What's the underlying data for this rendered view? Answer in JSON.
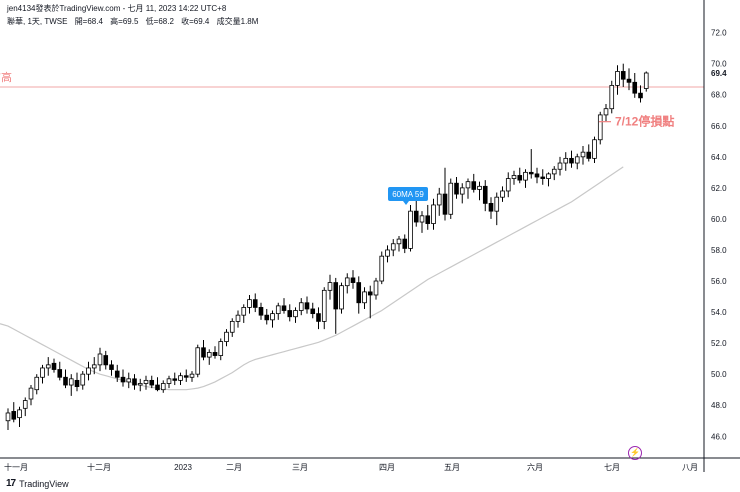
{
  "header": {
    "title": "jen4134發表於TradingView.com - 七月 11, 2023 14:22 UTC+8",
    "symbol": "聯華, 1天, TWSE",
    "open": "開=68.4",
    "high": "高=69.5",
    "low": "低=68.2",
    "close": "收=69.4",
    "volume": "成交量1.8M"
  },
  "footer": {
    "brand": "TradingView",
    "logo": "17"
  },
  "colors": {
    "up": "#ffffff",
    "down": "#000000",
    "line": "#f2a7a7",
    "ma": "#c8c8c8",
    "annotation": "#f08080",
    "badge": "#2196f3",
    "price_tag": "#131722"
  },
  "chart_data": {
    "type": "candlestick",
    "ylim": [
      44.6,
      73.2
    ],
    "y_ticks": [
      46.0,
      48.0,
      50.0,
      52.0,
      54.0,
      56.0,
      58.0,
      60.0,
      62.0,
      64.0,
      66.0,
      68.0,
      70.0,
      72.0
    ],
    "x_labels": [
      "十一月",
      "十二月",
      "2023",
      "二月",
      "三月",
      "四月",
      "五月",
      "六月",
      "七月",
      "八月"
    ],
    "last_price": "69.4",
    "hline": {
      "value": 68.5,
      "label": "前高"
    },
    "annotation": {
      "text": "7/12停損點",
      "value": 66.2
    },
    "badge": {
      "text": "60MA 59",
      "value": 61.1
    },
    "ma60": [
      53.1,
      52.9,
      52.7,
      52.5,
      52.3,
      52.1,
      51.9,
      51.7,
      51.5,
      51.3,
      51.1,
      50.9,
      50.7,
      50.5,
      50.3,
      50.15,
      50.0,
      49.9,
      49.8,
      49.7,
      49.6,
      49.5,
      49.4,
      49.3,
      49.2,
      49.15,
      49.1,
      49.05,
      49.0,
      49.0,
      49.0,
      49.0,
      49.05,
      49.1,
      49.2,
      49.35,
      49.5,
      49.7,
      49.9,
      50.1,
      50.35,
      50.6,
      50.8,
      50.95,
      51.05,
      51.15,
      51.25,
      51.35,
      51.45,
      51.55,
      51.65,
      51.75,
      51.85,
      51.95,
      52.05,
      52.2,
      52.35,
      52.5,
      52.7,
      52.9,
      53.1,
      53.3,
      53.5,
      53.7,
      53.9,
      54.1,
      54.35,
      54.6,
      54.85,
      55.1,
      55.35,
      55.6,
      55.85,
      56.1,
      56.3,
      56.5,
      56.7,
      56.9,
      57.1,
      57.3,
      57.5,
      57.7,
      57.9,
      58.1,
      58.3,
      58.5,
      58.7,
      58.9,
      59.1,
      59.3,
      59.5,
      59.7,
      59.9,
      60.1,
      60.3,
      60.5,
      60.7,
      60.9,
      61.1,
      61.35,
      61.6,
      61.85,
      62.1,
      62.35,
      62.6,
      62.85,
      63.1,
      63.35
    ],
    "ohlc": [
      [
        47.0,
        47.8,
        46.4,
        47.5
      ],
      [
        47.6,
        48.2,
        46.9,
        47.1
      ],
      [
        47.2,
        47.9,
        46.6,
        47.7
      ],
      [
        47.8,
        48.5,
        47.3,
        48.3
      ],
      [
        48.4,
        49.3,
        48.0,
        49.1
      ],
      [
        49.0,
        50.0,
        48.7,
        49.8
      ],
      [
        49.8,
        50.6,
        49.4,
        50.4
      ],
      [
        50.4,
        51.1,
        49.9,
        50.6
      ],
      [
        50.7,
        51.0,
        50.1,
        50.3
      ],
      [
        50.3,
        50.8,
        49.6,
        49.8
      ],
      [
        49.8,
        50.3,
        49.1,
        49.3
      ],
      [
        49.3,
        50.0,
        48.6,
        49.7
      ],
      [
        49.6,
        50.1,
        48.9,
        49.2
      ],
      [
        49.3,
        50.2,
        49.0,
        50.0
      ],
      [
        50.0,
        50.8,
        49.6,
        50.4
      ],
      [
        50.4,
        51.1,
        50.0,
        50.6
      ],
      [
        50.6,
        51.7,
        50.2,
        51.3
      ],
      [
        51.2,
        51.5,
        50.3,
        50.6
      ],
      [
        50.6,
        50.9,
        49.9,
        50.3
      ],
      [
        50.2,
        50.6,
        49.5,
        49.8
      ],
      [
        49.8,
        50.3,
        49.2,
        49.5
      ],
      [
        49.5,
        50.1,
        49.1,
        49.7
      ],
      [
        49.7,
        50.0,
        49.0,
        49.3
      ],
      [
        49.3,
        49.7,
        48.9,
        49.4
      ],
      [
        49.4,
        49.9,
        49.0,
        49.6
      ],
      [
        49.6,
        49.9,
        49.1,
        49.3
      ],
      [
        49.3,
        49.8,
        48.9,
        49.0
      ],
      [
        49.0,
        49.6,
        48.8,
        49.4
      ],
      [
        49.4,
        49.9,
        49.1,
        49.7
      ],
      [
        49.7,
        50.1,
        49.3,
        49.6
      ],
      [
        49.6,
        50.1,
        49.3,
        49.9
      ],
      [
        49.9,
        50.3,
        49.5,
        49.8
      ],
      [
        49.8,
        50.2,
        49.5,
        50.0
      ],
      [
        50.0,
        51.9,
        49.8,
        51.7
      ],
      [
        51.7,
        52.2,
        50.9,
        51.1
      ],
      [
        51.1,
        51.6,
        50.6,
        51.4
      ],
      [
        51.4,
        51.8,
        51.0,
        51.2
      ],
      [
        51.2,
        52.3,
        50.9,
        52.1
      ],
      [
        52.1,
        52.9,
        51.8,
        52.7
      ],
      [
        52.7,
        53.6,
        52.4,
        53.4
      ],
      [
        53.4,
        54.1,
        53.0,
        53.8
      ],
      [
        53.8,
        54.5,
        53.3,
        54.3
      ],
      [
        54.3,
        55.1,
        53.9,
        54.8
      ],
      [
        54.8,
        55.2,
        54.0,
        54.3
      ],
      [
        54.3,
        54.6,
        53.5,
        53.8
      ],
      [
        53.8,
        54.2,
        53.2,
        53.5
      ],
      [
        53.5,
        54.1,
        53.0,
        53.9
      ],
      [
        53.9,
        54.6,
        53.5,
        54.4
      ],
      [
        54.4,
        54.9,
        53.9,
        54.1
      ],
      [
        54.1,
        54.5,
        53.4,
        53.7
      ],
      [
        53.7,
        54.3,
        53.3,
        54.1
      ],
      [
        54.1,
        54.9,
        53.8,
        54.6
      ],
      [
        54.6,
        55.0,
        53.9,
        54.2
      ],
      [
        54.2,
        54.6,
        53.6,
        53.9
      ],
      [
        53.9,
        54.3,
        52.9,
        53.4
      ],
      [
        53.4,
        55.6,
        52.9,
        55.4
      ],
      [
        55.4,
        56.4,
        54.8,
        55.9
      ],
      [
        55.9,
        56.2,
        52.6,
        54.2
      ],
      [
        54.2,
        55.9,
        53.9,
        55.7
      ],
      [
        55.7,
        56.5,
        55.2,
        56.2
      ],
      [
        56.2,
        56.7,
        55.5,
        55.9
      ],
      [
        55.9,
        56.3,
        53.9,
        54.6
      ],
      [
        54.6,
        55.6,
        54.2,
        55.3
      ],
      [
        55.3,
        55.7,
        53.6,
        55.1
      ],
      [
        55.1,
        56.2,
        54.8,
        56.0
      ],
      [
        56.0,
        57.9,
        55.8,
        57.6
      ],
      [
        57.6,
        58.3,
        57.2,
        58.0
      ],
      [
        58.0,
        58.7,
        57.6,
        58.4
      ],
      [
        58.4,
        58.9,
        57.9,
        58.7
      ],
      [
        58.7,
        59.0,
        57.8,
        58.1
      ],
      [
        58.1,
        60.9,
        57.9,
        60.5
      ],
      [
        60.5,
        61.2,
        59.5,
        59.8
      ],
      [
        59.8,
        60.5,
        59.1,
        60.2
      ],
      [
        60.2,
        60.9,
        59.3,
        59.7
      ],
      [
        59.7,
        61.3,
        59.3,
        60.9
      ],
      [
        60.9,
        62.0,
        60.2,
        61.6
      ],
      [
        61.6,
        63.3,
        59.9,
        60.3
      ],
      [
        60.3,
        62.6,
        60.0,
        62.3
      ],
      [
        62.3,
        62.7,
        61.3,
        61.6
      ],
      [
        61.6,
        62.3,
        61.0,
        62.0
      ],
      [
        62.0,
        62.6,
        61.3,
        62.4
      ],
      [
        62.4,
        62.9,
        61.7,
        61.9
      ],
      [
        61.9,
        62.4,
        61.2,
        62.1
      ],
      [
        62.1,
        62.5,
        60.5,
        61.0
      ],
      [
        61.0,
        61.4,
        60.0,
        60.5
      ],
      [
        60.5,
        61.7,
        59.6,
        61.4
      ],
      [
        61.4,
        62.1,
        61.1,
        61.8
      ],
      [
        61.8,
        63.0,
        61.4,
        62.6
      ],
      [
        62.6,
        63.1,
        62.2,
        62.8
      ],
      [
        62.8,
        63.3,
        62.3,
        62.5
      ],
      [
        62.5,
        63.2,
        62.0,
        63.0
      ],
      [
        63.0,
        64.5,
        62.6,
        62.9
      ],
      [
        62.9,
        63.3,
        62.3,
        62.7
      ],
      [
        62.7,
        63.2,
        62.2,
        62.6
      ],
      [
        62.6,
        63.0,
        62.1,
        62.9
      ],
      [
        62.9,
        63.4,
        62.5,
        63.2
      ],
      [
        63.2,
        64.0,
        62.8,
        63.6
      ],
      [
        63.6,
        64.3,
        63.1,
        63.9
      ],
      [
        63.9,
        64.4,
        63.3,
        63.6
      ],
      [
        63.6,
        64.2,
        63.2,
        64.0
      ],
      [
        64.0,
        64.7,
        63.5,
        64.3
      ],
      [
        64.3,
        64.8,
        63.7,
        63.9
      ],
      [
        63.9,
        65.3,
        63.6,
        65.1
      ],
      [
        65.1,
        66.9,
        64.8,
        66.7
      ],
      [
        66.7,
        67.4,
        66.3,
        67.1
      ],
      [
        67.1,
        68.9,
        66.8,
        68.6
      ],
      [
        68.6,
        69.9,
        68.0,
        69.5
      ],
      [
        69.5,
        70.0,
        68.5,
        69.0
      ],
      [
        69.0,
        69.7,
        68.3,
        68.8
      ],
      [
        68.8,
        69.4,
        67.8,
        68.1
      ],
      [
        68.1,
        68.6,
        67.5,
        67.8
      ],
      [
        68.4,
        69.5,
        68.2,
        69.4
      ]
    ]
  }
}
